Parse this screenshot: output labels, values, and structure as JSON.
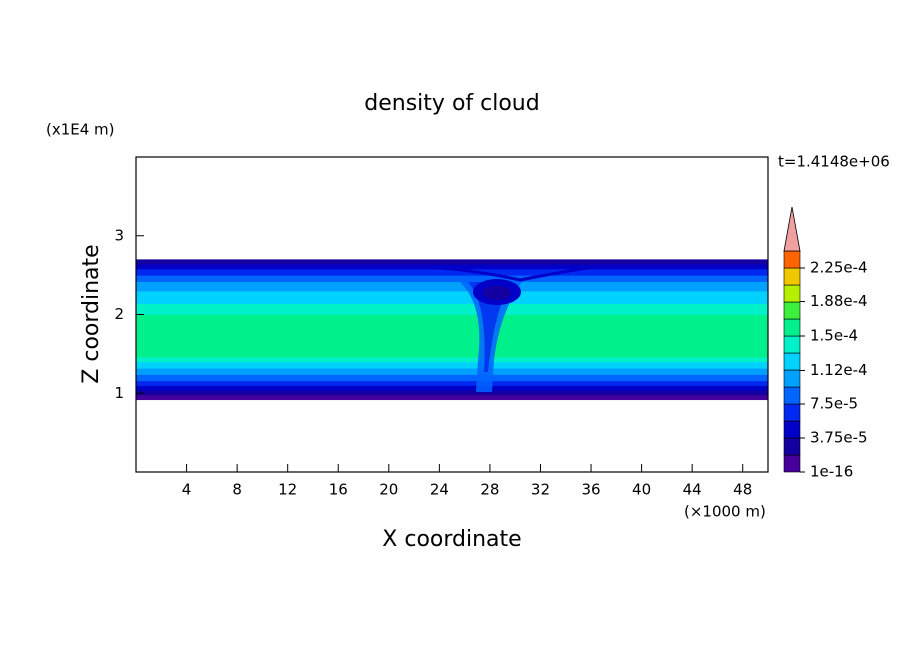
{
  "chart_data": {
    "type": "contour",
    "title": "density of cloud",
    "xlabel": "X coordinate",
    "ylabel": "Z coordinate",
    "xunit": "(×1000 m)",
    "yunit": "(x1E4 m)",
    "time_label": "t=1.4148e+06",
    "xlim": [
      0,
      50
    ],
    "xticks": [
      4,
      8,
      12,
      16,
      20,
      24,
      28,
      32,
      36,
      40,
      44,
      48
    ],
    "ylim": [
      0,
      4
    ],
    "yticks": [
      1,
      2,
      3
    ],
    "zbins": [
      0.92,
      0.98,
      1.04,
      1.1,
      1.16,
      1.24,
      1.32,
      1.4,
      1.46,
      2.0,
      2.14,
      2.3,
      2.42,
      2.5,
      2.58,
      2.64,
      2.7
    ],
    "values": [
      1e-05,
      2.5e-05,
      4e-05,
      6e-05,
      8e-05,
      0.0001,
      0.00012,
      0.00014,
      0.000155,
      0.00014,
      0.00012,
      0.0001,
      8e-05,
      6e-05,
      4e-05,
      2.5e-05
    ],
    "colorbar": {
      "levels": [
        1e-16,
        1.875e-05,
        3.75e-05,
        5.625e-05,
        7.5e-05,
        9.375e-05,
        0.0001125,
        0.00013125,
        0.00015,
        0.00016875,
        0.0001875,
        0.00020625,
        0.000225,
        0.00024375
      ],
      "colors": [
        "#46009b",
        "#1400a0",
        "#0000c8",
        "#0028f0",
        "#0064ff",
        "#00a0ff",
        "#00d2ff",
        "#00f0c8",
        "#00f08c",
        "#3cf03c",
        "#b4f000",
        "#f0c800",
        "#ff6400"
      ],
      "over_color": "#f0a0a0",
      "ticks": [
        {
          "value": 1e-16,
          "label": "1e-16"
        },
        {
          "value": 3.75e-05,
          "label": "3.75e-5"
        },
        {
          "value": 7.5e-05,
          "label": "7.5e-5"
        },
        {
          "value": 0.000112,
          "label": "1.12e-4"
        },
        {
          "value": 0.00015,
          "label": "1.5e-4"
        },
        {
          "value": 0.000188,
          "label": "1.88e-4"
        },
        {
          "value": 0.000225,
          "label": "2.25e-4"
        }
      ]
    }
  }
}
